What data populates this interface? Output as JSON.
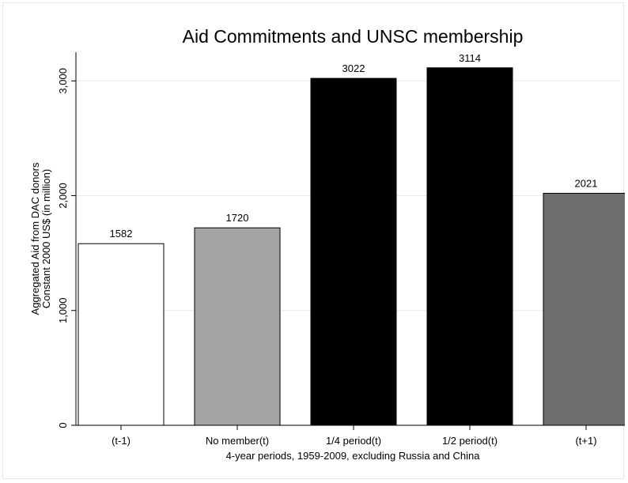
{
  "chart_data": {
    "type": "bar",
    "title": "Aid Commitments and UNSC membership",
    "xlabel": "4-year periods, 1959-2009, excluding Russia and China",
    "ylabel_lines": [
      "Aggregated Aid from DAC donors",
      "Constant 2000 US$ (in million)"
    ],
    "categories": [
      "(t-1)",
      "No member(t)",
      "1/4 period(t)",
      "1/2 period(t)",
      "(t+1)"
    ],
    "values": [
      1582,
      1720,
      3022,
      3114,
      2021
    ],
    "value_labels": [
      "1582",
      "1720",
      "3022",
      "3114",
      "2021"
    ],
    "bar_colors": [
      "#ffffff",
      "#a3a3a3",
      "#000000",
      "#000000",
      "#6e6e6e"
    ],
    "bar_outline": "#000000",
    "ylim": [
      0,
      3250
    ],
    "yticks": [
      0,
      1000,
      2000,
      3000
    ],
    "ytick_labels": [
      "0",
      "1,000",
      "2,000",
      "3,000"
    ],
    "grid": true,
    "grid_color": "#e8e8e8",
    "legend": "none"
  }
}
